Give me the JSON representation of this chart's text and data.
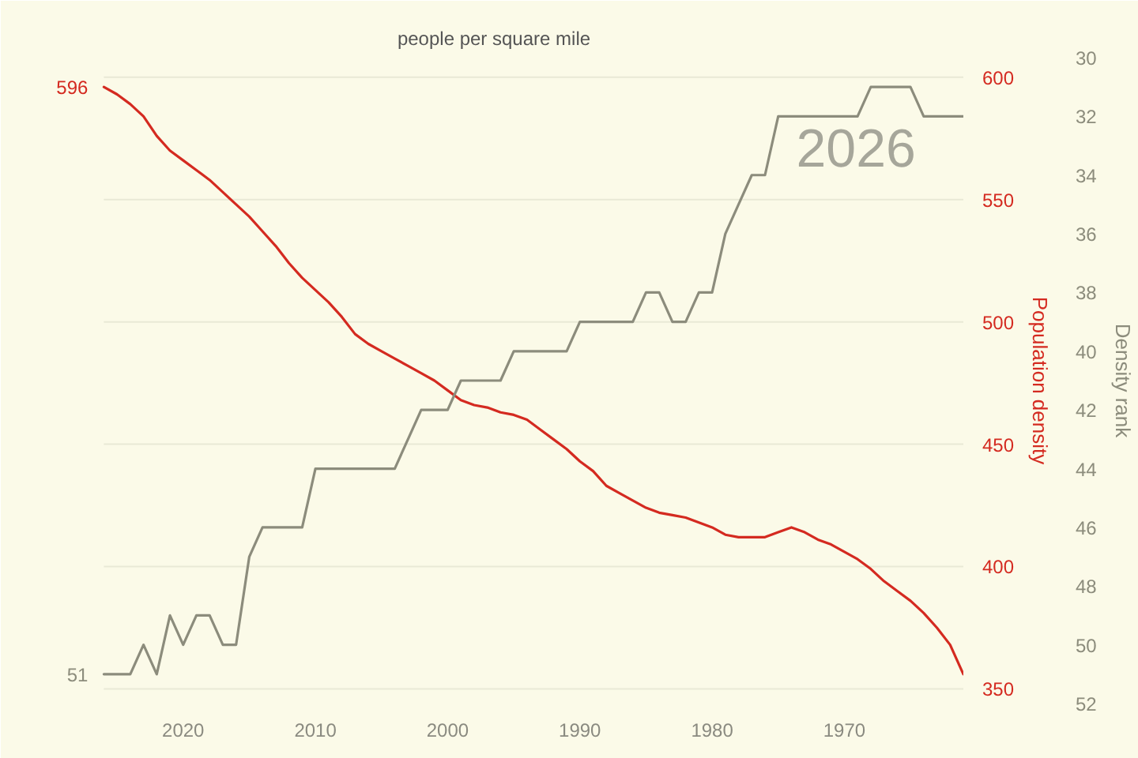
{
  "chart_data": {
    "type": "line",
    "subtitle": "people per square mile",
    "ylabel": "Population density",
    "y2label": "Density rank",
    "annotations": [
      "2026"
    ],
    "x": [
      1961,
      1962,
      1963,
      1964,
      1965,
      1966,
      1967,
      1968,
      1969,
      1970,
      1971,
      1972,
      1973,
      1974,
      1975,
      1976,
      1977,
      1978,
      1979,
      1980,
      1981,
      1982,
      1983,
      1984,
      1985,
      1986,
      1987,
      1988,
      1989,
      1990,
      1991,
      1992,
      1993,
      1994,
      1995,
      1996,
      1997,
      1998,
      1999,
      2000,
      2001,
      2002,
      2003,
      2004,
      2005,
      2006,
      2007,
      2008,
      2009,
      2010,
      2011,
      2012,
      2013,
      2014,
      2015,
      2016,
      2017,
      2018,
      2019,
      2020,
      2021,
      2022,
      2023,
      2024,
      2025,
      2026
    ],
    "series": [
      {
        "color": "#d42a20",
        "values": [
          356,
          368,
          375,
          381,
          386,
          390,
          394,
          399,
          403,
          406,
          409,
          411,
          414,
          416,
          414,
          412,
          412,
          412,
          413,
          416,
          418,
          420,
          421,
          422,
          424,
          427,
          430,
          433,
          439,
          443,
          448,
          452,
          456,
          460,
          462,
          463,
          465,
          466,
          468,
          472,
          476,
          479,
          482,
          485,
          488,
          491,
          495,
          502,
          508,
          513,
          518,
          524,
          531,
          537,
          543,
          548,
          553,
          558,
          562,
          566,
          570,
          576,
          584,
          589,
          593,
          596
        ],
        "value_labels": [
          null,
          null,
          null,
          null,
          null,
          null,
          null,
          null,
          null,
          null,
          null,
          null,
          null,
          null,
          null,
          null,
          null,
          null,
          null,
          null,
          null,
          null,
          null,
          null,
          null,
          null,
          null,
          null,
          null,
          null,
          null,
          null,
          null,
          null,
          null,
          null,
          null,
          null,
          null,
          null,
          null,
          null,
          null,
          null,
          null,
          null,
          null,
          null,
          null,
          null,
          null,
          null,
          null,
          null,
          null,
          null,
          null,
          null,
          null,
          null,
          null,
          null,
          null,
          null,
          null,
          "596"
        ]
      },
      {
        "color": "#8c8c7c",
        "axis": "y2",
        "values": [
          32,
          32,
          32,
          32,
          31,
          31,
          31,
          31,
          32,
          32,
          32,
          32,
          32,
          32,
          32,
          34,
          34,
          35,
          36,
          38,
          38,
          39,
          39,
          38,
          38,
          39,
          39,
          39,
          39,
          39,
          40,
          40,
          40,
          40,
          40,
          41,
          41,
          41,
          41,
          42,
          42,
          42,
          43,
          44,
          44,
          44,
          44,
          44,
          44,
          44,
          46,
          46,
          46,
          46,
          47,
          50,
          50,
          49,
          49,
          50,
          49,
          51,
          50,
          51,
          51,
          51
        ],
        "value_labels": [
          null,
          null,
          null,
          null,
          null,
          null,
          null,
          null,
          null,
          null,
          null,
          null,
          null,
          null,
          null,
          null,
          null,
          null,
          null,
          null,
          null,
          null,
          null,
          null,
          null,
          null,
          null,
          null,
          null,
          null,
          null,
          null,
          null,
          null,
          null,
          null,
          null,
          null,
          null,
          null,
          null,
          null,
          null,
          null,
          null,
          null,
          null,
          null,
          null,
          null,
          null,
          null,
          null,
          null,
          null,
          null,
          null,
          null,
          null,
          null,
          null,
          null,
          null,
          null,
          null,
          "51"
        ]
      }
    ],
    "xlim": [
      2032,
      1961
    ],
    "xticks": [
      2020,
      2010,
      2000,
      1990,
      1980,
      1970
    ],
    "ylim": [
      344,
      608
    ],
    "yticks": [
      350,
      400,
      450,
      500,
      550,
      600
    ],
    "y2lim": [
      52,
      30
    ],
    "y2ticks": [
      30,
      32,
      34,
      36,
      38,
      40,
      42,
      44,
      46,
      48,
      50,
      52
    ],
    "grid": "y"
  }
}
